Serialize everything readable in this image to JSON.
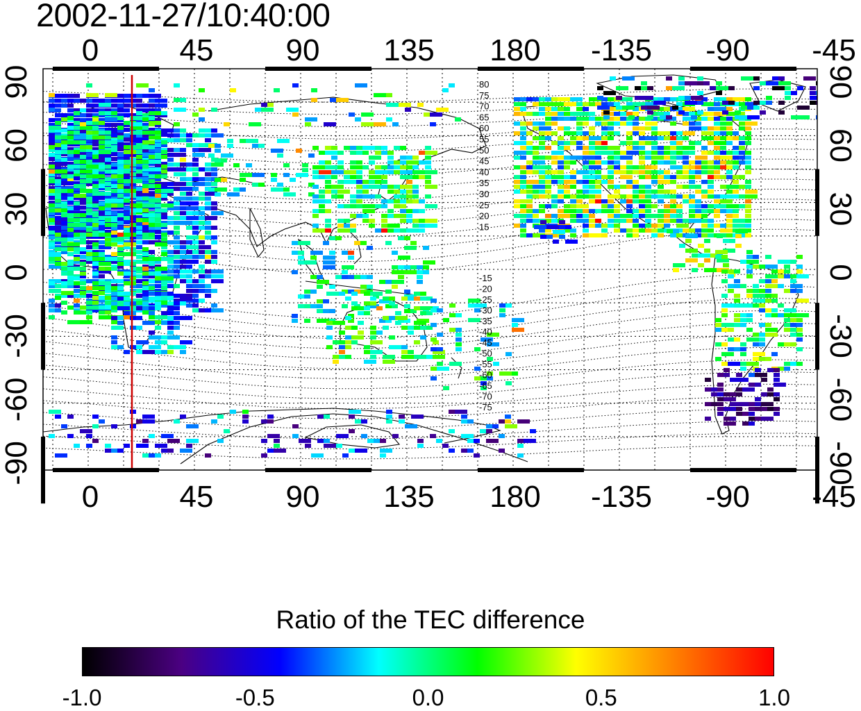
{
  "header": {
    "timestamp": "2002-11-27/10:40:00"
  },
  "map": {
    "lon_ticks": [
      "0",
      "45",
      "90",
      "135",
      "180",
      "-135",
      "-90",
      "-45"
    ],
    "lat_ticks": [
      "90",
      "60",
      "30",
      "0",
      "-30",
      "-60",
      "-90"
    ],
    "magnetic_lat_labels_north": [
      "80",
      "75",
      "70",
      "65",
      "60",
      "55",
      "50",
      "45",
      "40",
      "35",
      "30",
      "25",
      "20",
      "15"
    ],
    "magnetic_lat_labels_south": [
      "-15",
      "-20",
      "-25",
      "-30",
      "-35",
      "-40",
      "-45",
      "-50",
      "-55",
      "-60",
      "-65",
      "-70",
      "-75"
    ],
    "marker_longitude": 20,
    "marker_color": "#cc0000"
  },
  "colorbar": {
    "title": "Ratio of the TEC difference",
    "ticks": [
      "-1.0",
      "-0.5",
      "0.0",
      "0.5",
      "1.0"
    ],
    "range": [
      -1.0,
      1.0
    ],
    "colors": [
      "#000000",
      "#4b0082",
      "#0000ff",
      "#00ffff",
      "#00ff00",
      "#ffff00",
      "#ff8000",
      "#ff0000"
    ]
  }
}
